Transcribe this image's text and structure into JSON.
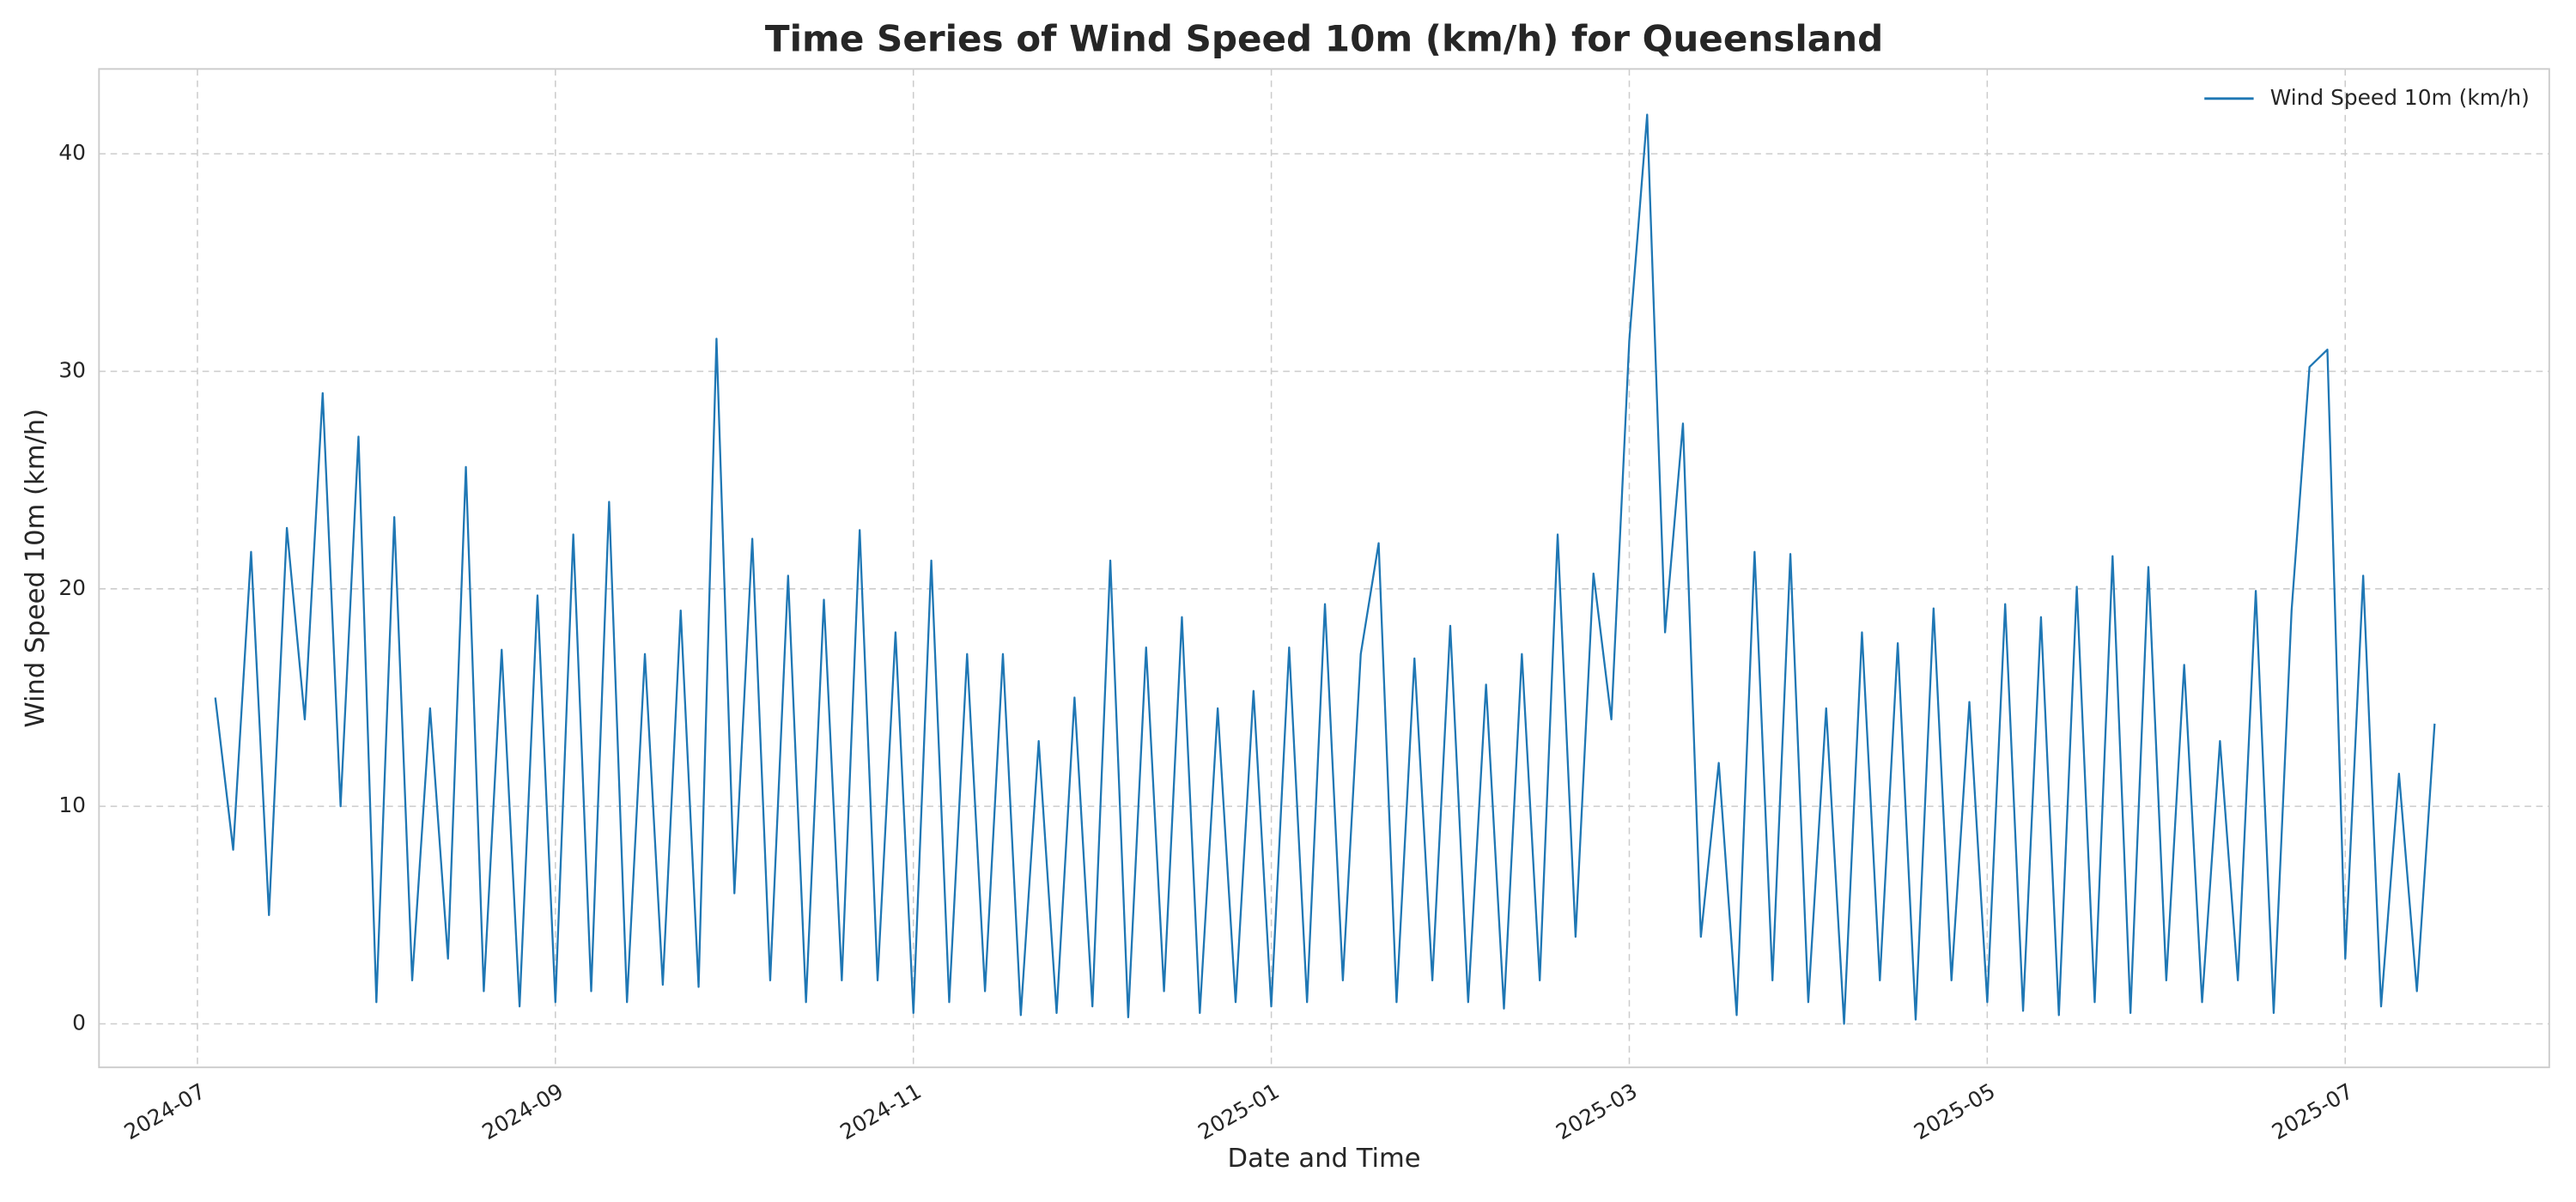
{
  "chart_data": {
    "type": "line",
    "title": "Time Series of Wind Speed 10m (km/h) for Queensland",
    "xlabel": "Date and Time",
    "ylabel": "Wind Speed 10m (km/h)",
    "x": [
      0.1,
      0.2,
      0.3,
      0.4,
      0.5,
      0.6,
      0.7,
      0.8,
      0.9,
      1.0,
      1.1,
      1.2,
      1.3,
      1.4,
      1.5,
      1.6,
      1.7,
      1.8,
      1.9,
      2.0,
      2.1,
      2.2,
      2.3,
      2.4,
      2.5,
      2.6,
      2.7,
      2.8,
      2.9,
      3.0,
      3.1,
      3.2,
      3.3,
      3.4,
      3.5,
      3.6,
      3.7,
      3.8,
      3.9,
      4.0,
      4.1,
      4.2,
      4.3,
      4.4,
      4.5,
      4.6,
      4.7,
      4.8,
      4.9,
      5.0,
      5.1,
      5.2,
      5.3,
      5.4,
      5.5,
      5.6,
      5.7,
      5.8,
      5.9,
      6.0,
      6.1,
      6.2,
      6.3,
      6.4,
      6.5,
      6.6,
      6.7,
      6.8,
      6.9,
      7.0,
      7.1,
      7.2,
      7.3,
      7.4,
      7.5,
      7.6,
      7.7,
      7.8,
      7.9,
      8.0,
      8.1,
      8.2,
      8.3,
      8.4,
      8.5,
      8.6,
      8.7,
      8.8,
      8.9,
      9.0,
      9.1,
      9.2,
      9.3,
      9.4,
      9.5,
      9.6,
      9.7,
      9.8,
      9.9,
      10.0,
      10.1,
      10.2,
      10.3,
      10.4,
      10.5,
      10.6,
      10.7,
      10.8,
      10.9,
      11.0,
      11.1,
      11.2,
      11.3,
      11.4,
      11.5,
      11.6,
      11.7,
      11.8,
      11.9,
      12.0,
      12.1,
      12.2,
      12.3,
      12.4,
      12.5
    ],
    "series": [
      {
        "name": "Wind Speed 10m (km/h)",
        "color": "#1f77b4",
        "values": [
          15,
          8,
          21.7,
          5,
          22.8,
          14,
          29,
          10,
          27,
          1,
          23.3,
          2,
          14.5,
          3,
          25.6,
          1.5,
          17.2,
          0.8,
          19.7,
          1,
          22.5,
          1.5,
          24,
          1,
          17,
          1.8,
          19,
          1.7,
          31.5,
          6,
          22.3,
          2,
          20.6,
          1,
          19.5,
          2,
          22.7,
          2,
          18,
          0.5,
          21.3,
          1,
          17,
          1.5,
          17,
          0.4,
          13,
          0.5,
          15,
          0.8,
          21.3,
          0.3,
          17.3,
          1.5,
          18.7,
          0.5,
          14.5,
          1,
          15.3,
          0.8,
          17.3,
          1,
          19.3,
          2,
          17,
          22.1,
          1,
          16.8,
          2,
          18.3,
          1,
          15.6,
          0.7,
          17,
          2,
          22.5,
          4,
          20.7,
          14,
          31.4,
          41.8,
          18,
          27.6,
          4,
          12,
          0.4,
          21.7,
          2,
          21.6,
          1,
          14.5,
          0,
          18,
          2,
          17.5,
          0.2,
          19.1,
          2,
          14.8,
          1,
          19.3,
          0.6,
          18.7,
          0.4,
          20.1,
          1,
          21.5,
          0.5,
          21,
          2,
          16.5,
          1,
          13,
          2,
          19.9,
          0.5,
          19,
          30.2,
          31,
          3,
          20.6,
          0.8,
          11.5,
          1.5,
          13.8
        ]
      }
    ],
    "xlim": [
      -0.55,
      13.14
    ],
    "xticks": [
      {
        "value": 0,
        "label": "2024-07"
      },
      {
        "value": 2,
        "label": "2024-09"
      },
      {
        "value": 4,
        "label": "2024-11"
      },
      {
        "value": 6,
        "label": "2025-01"
      },
      {
        "value": 8,
        "label": "2025-03"
      },
      {
        "value": 10,
        "label": "2025-05"
      },
      {
        "value": 12,
        "label": "2025-07"
      }
    ],
    "ylim": [
      -2,
      43.9
    ],
    "yticks": [
      0,
      10,
      20,
      30,
      40
    ],
    "grid": true,
    "legend": "upper right"
  }
}
